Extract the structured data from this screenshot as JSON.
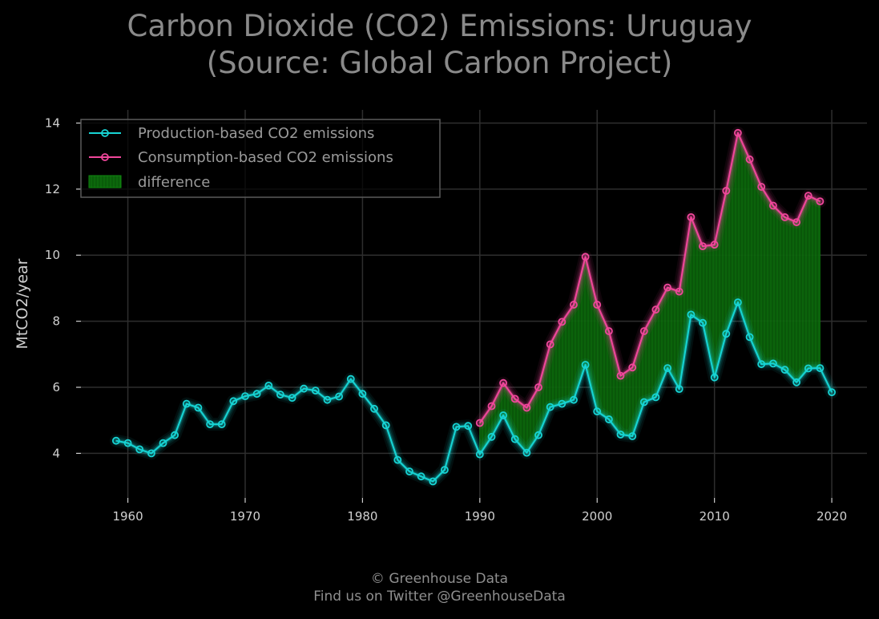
{
  "chart_data": {
    "type": "line",
    "title": "Carbon Dioxide (CO2) Emissions: Uruguay",
    "subtitle": "(Source: Global Carbon Project)",
    "ylabel": "MtCO2/year",
    "xlabel": "",
    "xlim": [
      1956,
      2023
    ],
    "ylim": [
      2.65,
      14.4
    ],
    "xticks": [
      1960,
      1970,
      1980,
      1990,
      2000,
      2010,
      2020
    ],
    "yticks": [
      4,
      6,
      8,
      10,
      12,
      14
    ],
    "grid": true,
    "legend_position": "top-left",
    "series": [
      {
        "name": "Production-based CO2 emissions",
        "color": "#17d4d4",
        "x": [
          1959,
          1960,
          1961,
          1962,
          1963,
          1964,
          1965,
          1966,
          1967,
          1968,
          1969,
          1970,
          1971,
          1972,
          1973,
          1974,
          1975,
          1976,
          1977,
          1978,
          1979,
          1980,
          1981,
          1982,
          1983,
          1984,
          1985,
          1986,
          1987,
          1988,
          1989,
          1990,
          1991,
          1992,
          1993,
          1994,
          1995,
          1996,
          1997,
          1998,
          1999,
          2000,
          2001,
          2002,
          2003,
          2004,
          2005,
          2006,
          2007,
          2008,
          2009,
          2010,
          2011,
          2012,
          2013,
          2014,
          2015,
          2016,
          2017,
          2018,
          2019,
          2020
        ],
        "values": [
          4.38,
          4.31,
          4.12,
          4.0,
          4.31,
          4.55,
          5.5,
          5.38,
          4.88,
          4.88,
          5.58,
          5.73,
          5.8,
          6.05,
          5.78,
          5.68,
          5.96,
          5.9,
          5.62,
          5.72,
          6.25,
          5.8,
          5.35,
          4.85,
          3.8,
          3.45,
          3.3,
          3.15,
          3.5,
          4.8,
          4.83,
          3.97,
          4.5,
          5.15,
          4.43,
          4.02,
          4.55,
          5.4,
          5.5,
          5.62,
          6.68,
          5.27,
          5.03,
          4.57,
          4.52,
          5.55,
          5.7,
          6.58,
          5.95,
          8.2,
          7.95,
          6.3,
          7.62,
          8.57,
          7.52,
          6.7,
          6.72,
          6.53,
          6.15,
          6.57,
          6.58,
          5.85
        ]
      },
      {
        "name": "Consumption-based CO2 emissions",
        "color": "#f0479b",
        "x": [
          1990,
          1991,
          1992,
          1993,
          1994,
          1995,
          1996,
          1997,
          1998,
          1999,
          2000,
          2001,
          2002,
          2003,
          2004,
          2005,
          2006,
          2007,
          2008,
          2009,
          2010,
          2011,
          2012,
          2013,
          2014,
          2015,
          2016,
          2017,
          2018,
          2019
        ],
        "values": [
          4.92,
          5.43,
          6.13,
          5.65,
          5.38,
          6.0,
          7.3,
          7.98,
          8.5,
          9.95,
          8.5,
          7.7,
          6.35,
          6.6,
          7.7,
          8.35,
          9.02,
          8.9,
          11.15,
          10.27,
          10.32,
          11.95,
          13.7,
          12.9,
          12.07,
          11.5,
          11.15,
          11.0,
          11.8,
          11.63
        ]
      }
    ],
    "difference": {
      "name": "difference",
      "color": "#0b6d0b",
      "between": [
        "Consumption-based CO2 emissions",
        "Production-based CO2 emissions"
      ]
    }
  },
  "footer": {
    "line1": "© Greenhouse Data",
    "line2": "Find us on Twitter @GreenhouseData"
  }
}
